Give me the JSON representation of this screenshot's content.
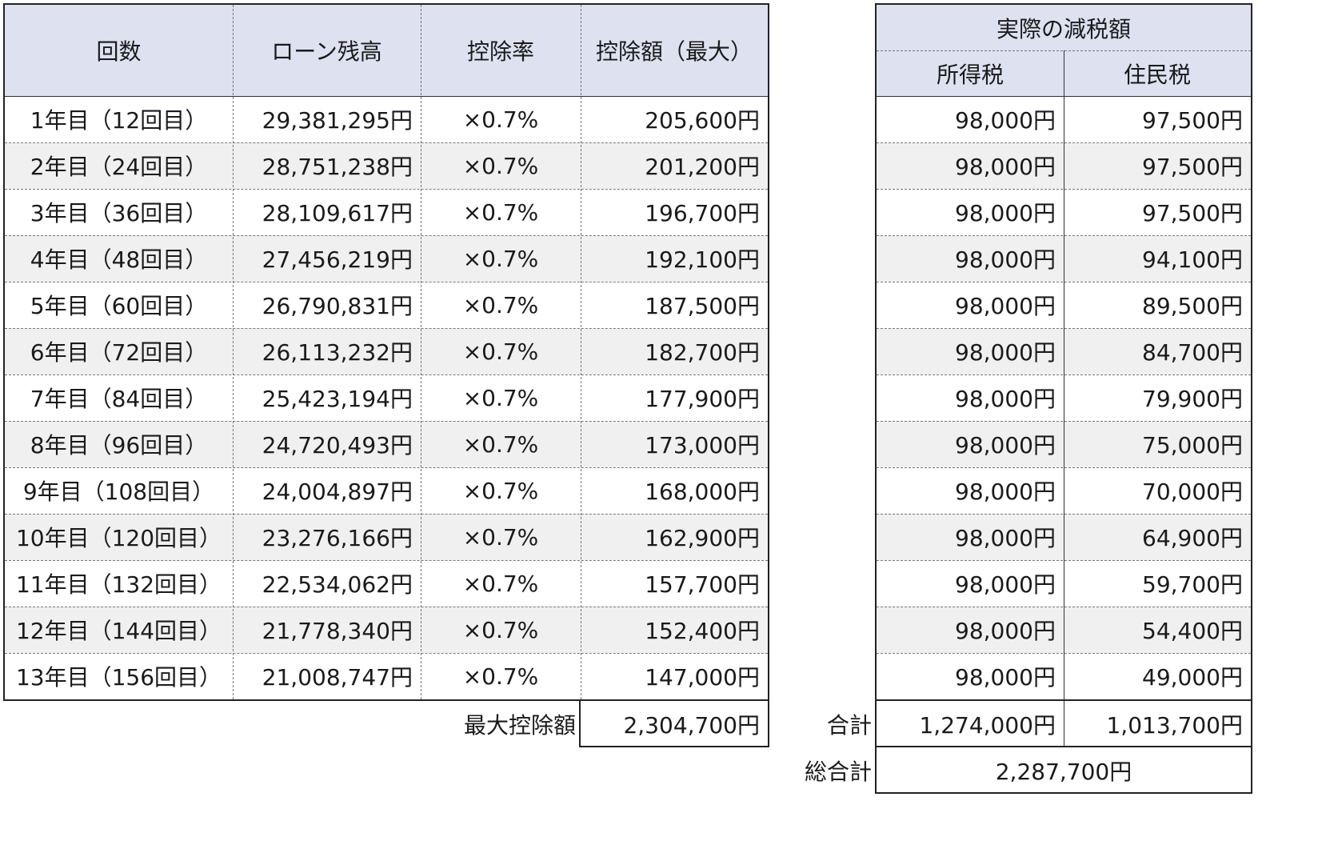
{
  "left_table": {
    "headers": {
      "kaisu": "回数",
      "loan_balance": "ローン残高",
      "deduction_rate": "控除率",
      "deduction_amount": "控除額（最大）"
    },
    "rows": [
      {
        "period": "1年目（12回目）",
        "balance": "29,381,295円",
        "rate": "×0.7%",
        "amount": "205,600円"
      },
      {
        "period": "2年目（24回目）",
        "balance": "28,751,238円",
        "rate": "×0.7%",
        "amount": "201,200円"
      },
      {
        "period": "3年目（36回目）",
        "balance": "28,109,617円",
        "rate": "×0.7%",
        "amount": "196,700円"
      },
      {
        "period": "4年目（48回目）",
        "balance": "27,456,219円",
        "rate": "×0.7%",
        "amount": "192,100円"
      },
      {
        "period": "5年目（60回目）",
        "balance": "26,790,831円",
        "rate": "×0.7%",
        "amount": "187,500円"
      },
      {
        "period": "6年目（72回目）",
        "balance": "26,113,232円",
        "rate": "×0.7%",
        "amount": "182,700円"
      },
      {
        "period": "7年目（84回目）",
        "balance": "25,423,194円",
        "rate": "×0.7%",
        "amount": "177,900円"
      },
      {
        "period": "8年目（96回目）",
        "balance": "24,720,493円",
        "rate": "×0.7%",
        "amount": "173,000円"
      },
      {
        "period": "9年目（108回目）",
        "balance": "24,004,897円",
        "rate": "×0.7%",
        "amount": "168,000円"
      },
      {
        "period": "10年目（120回目）",
        "balance": "23,276,166円",
        "rate": "×0.7%",
        "amount": "162,900円"
      },
      {
        "period": "11年目（132回目）",
        "balance": "22,534,062円",
        "rate": "×0.7%",
        "amount": "157,700円"
      },
      {
        "period": "12年目（144回目）",
        "balance": "21,778,340円",
        "rate": "×0.7%",
        "amount": "152,400円"
      },
      {
        "period": "13年目（156回目）",
        "balance": "21,008,747円",
        "rate": "×0.7%",
        "amount": "147,000円"
      }
    ],
    "total_label": "最大控除額",
    "total_value": "2,304,700円"
  },
  "right_table": {
    "header_title": "実際の減税額",
    "headers": {
      "income_tax": "所得税",
      "resident_tax": "住民税"
    },
    "rows": [
      {
        "income_tax": "98,000円",
        "resident_tax": "97,500円"
      },
      {
        "income_tax": "98,000円",
        "resident_tax": "97,500円"
      },
      {
        "income_tax": "98,000円",
        "resident_tax": "97,500円"
      },
      {
        "income_tax": "98,000円",
        "resident_tax": "94,100円"
      },
      {
        "income_tax": "98,000円",
        "resident_tax": "89,500円"
      },
      {
        "income_tax": "98,000円",
        "resident_tax": "84,700円"
      },
      {
        "income_tax": "98,000円",
        "resident_tax": "79,900円"
      },
      {
        "income_tax": "98,000円",
        "resident_tax": "75,000円"
      },
      {
        "income_tax": "98,000円",
        "resident_tax": "70,000円"
      },
      {
        "income_tax": "98,000円",
        "resident_tax": "64,900円"
      },
      {
        "income_tax": "98,000円",
        "resident_tax": "59,700円"
      },
      {
        "income_tax": "98,000円",
        "resident_tax": "54,400円"
      },
      {
        "income_tax": "98,000円",
        "resident_tax": "49,000円"
      }
    ],
    "subtotal_label": "合計",
    "subtotal_income_tax": "1,274,000円",
    "subtotal_resident_tax": "1,013,700円",
    "grand_total_label": "総合計",
    "grand_total_value": "2,287,700円"
  },
  "colors": {
    "header_bg": "#dde1f0",
    "row_shade": "#f0f0f0"
  }
}
